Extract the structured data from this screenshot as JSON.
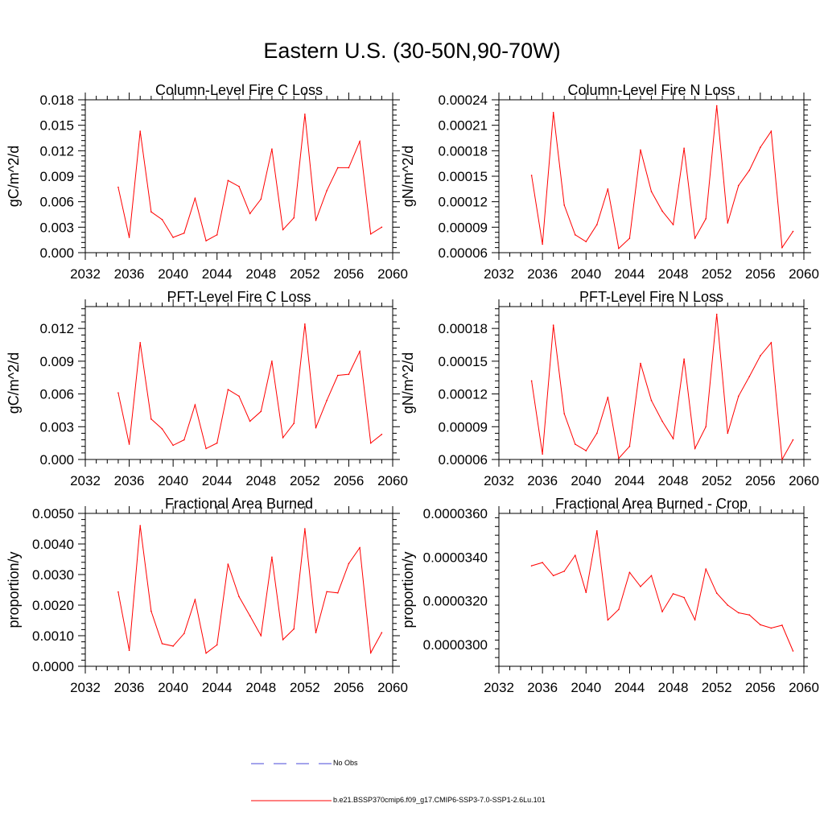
{
  "title": "Eastern U.S. (30-50N,90-70W)",
  "x_ticks": [
    "2032",
    "2036",
    "2040",
    "2044",
    "2048",
    "2052",
    "2056",
    "2060"
  ],
  "legend": {
    "entries": [
      {
        "label": "No Obs",
        "color": "#4a4ad8",
        "style": "dashed"
      },
      {
        "label": "b.e21.BSSP370cmip6.f09_g17.CMIP6-SSP3-7.0-SSP1-2.6Lu.101",
        "color": "#ff0000",
        "style": "solid"
      }
    ]
  },
  "chart_data": [
    {
      "type": "line",
      "title": "Column-Level Fire C Loss",
      "ylabel": "gC/m^2/d",
      "xlim": [
        2032,
        2060
      ],
      "ylim": [
        0,
        0.018
      ],
      "yticks": [
        "0.000",
        "0.003",
        "0.006",
        "0.009",
        "0.012",
        "0.015",
        "0.018"
      ],
      "color": "#ff0000",
      "x": [
        2035,
        2036,
        2037,
        2038,
        2039,
        2040,
        2041,
        2042,
        2043,
        2044,
        2045,
        2046,
        2047,
        2048,
        2049,
        2050,
        2051,
        2052,
        2053,
        2054,
        2055,
        2056,
        2057,
        2058,
        2059
      ],
      "y": [
        0.0077,
        0.0018,
        0.0143,
        0.0048,
        0.0039,
        0.0018,
        0.0023,
        0.0064,
        0.0014,
        0.0021,
        0.0085,
        0.0078,
        0.0046,
        0.0063,
        0.0122,
        0.0027,
        0.0041,
        0.0163,
        0.0038,
        0.0073,
        0.01,
        0.01,
        0.0131,
        0.0022,
        0.003
      ]
    },
    {
      "type": "line",
      "title": "Column-Level Fire N Loss",
      "ylabel": "gN/m^2/d",
      "xlim": [
        2032,
        2060
      ],
      "ylim": [
        6e-05,
        0.00024
      ],
      "yticks": [
        "0.00006",
        "0.00009",
        "0.00012",
        "0.00015",
        "0.00018",
        "0.00021",
        "0.00024"
      ],
      "color": "#ff0000",
      "x": [
        2035,
        2036,
        2037,
        2038,
        2039,
        2040,
        2041,
        2042,
        2043,
        2044,
        2045,
        2046,
        2047,
        2048,
        2049,
        2050,
        2051,
        2052,
        2053,
        2054,
        2055,
        2056,
        2057,
        2058,
        2059
      ],
      "y": [
        0.000151,
        7e-05,
        0.000225,
        0.000116,
        8.1e-05,
        7.3e-05,
        9.3e-05,
        0.000135,
        6.5e-05,
        7.7e-05,
        0.000181,
        0.000132,
        0.000109,
        9.3e-05,
        0.000183,
        7.7e-05,
        0.0001,
        0.000233,
        9.5e-05,
        0.000139,
        0.000157,
        0.000184,
        0.000203,
        6.6e-05,
        8.5e-05
      ]
    },
    {
      "type": "line",
      "title": "PFT-Level Fire C Loss",
      "ylabel": "gC/m^2/d",
      "xlim": [
        2032,
        2060
      ],
      "ylim": [
        0,
        0.014
      ],
      "yticks": [
        "0.000",
        "0.003",
        "0.006",
        "0.009",
        "0.012"
      ],
      "color": "#ff0000",
      "x": [
        2035,
        2036,
        2037,
        2038,
        2039,
        2040,
        2041,
        2042,
        2043,
        2044,
        2045,
        2046,
        2047,
        2048,
        2049,
        2050,
        2051,
        2052,
        2053,
        2054,
        2055,
        2056,
        2057,
        2058,
        2059
      ],
      "y": [
        0.0061,
        0.0014,
        0.0107,
        0.0037,
        0.0028,
        0.0013,
        0.0018,
        0.005,
        0.001,
        0.0015,
        0.0064,
        0.0058,
        0.0035,
        0.0044,
        0.009,
        0.002,
        0.0033,
        0.0124,
        0.0029,
        0.0054,
        0.0077,
        0.0078,
        0.0099,
        0.0015,
        0.0023
      ]
    },
    {
      "type": "line",
      "title": "PFT-Level Fire N Loss",
      "ylabel": "gN/m^2/d",
      "xlim": [
        2032,
        2060
      ],
      "ylim": [
        6e-05,
        0.0002
      ],
      "yticks": [
        "0.00006",
        "0.00009",
        "0.00012",
        "0.00015",
        "0.00018"
      ],
      "color": "#ff0000",
      "x": [
        2035,
        2036,
        2037,
        2038,
        2039,
        2040,
        2041,
        2042,
        2043,
        2044,
        2045,
        2046,
        2047,
        2048,
        2049,
        2050,
        2051,
        2052,
        2053,
        2054,
        2055,
        2056,
        2057,
        2058,
        2059
      ],
      "y": [
        0.000132,
        6.5e-05,
        0.000183,
        0.000102,
        7.4e-05,
        6.8e-05,
        8.4e-05,
        0.000117,
        6.1e-05,
        7.2e-05,
        0.000148,
        0.000114,
        9.5e-05,
        7.9e-05,
        0.000152,
        7e-05,
        9e-05,
        0.000193,
        8.4e-05,
        0.000118,
        0.000136,
        0.000155,
        0.000167,
        6e-05,
        7.8e-05
      ]
    },
    {
      "type": "line",
      "title": "Fractional Area Burned",
      "ylabel": "proportion/y",
      "xlim": [
        2032,
        2060
      ],
      "ylim": [
        0,
        0.005
      ],
      "yticks": [
        "0.0000",
        "0.0010",
        "0.0020",
        "0.0030",
        "0.0040",
        "0.0050"
      ],
      "color": "#ff0000",
      "x": [
        2035,
        2036,
        2037,
        2038,
        2039,
        2040,
        2041,
        2042,
        2043,
        2044,
        2045,
        2046,
        2047,
        2048,
        2049,
        2050,
        2051,
        2052,
        2053,
        2054,
        2055,
        2056,
        2057,
        2058,
        2059
      ],
      "y": [
        0.00243,
        0.00052,
        0.0046,
        0.0018,
        0.00074,
        0.00066,
        0.00107,
        0.00218,
        0.00043,
        0.0007,
        0.00334,
        0.00228,
        0.00165,
        0.001,
        0.00357,
        0.00087,
        0.00122,
        0.0045,
        0.0011,
        0.00244,
        0.0024,
        0.00336,
        0.00388,
        0.00044,
        0.0011
      ]
    },
    {
      "type": "line",
      "title": "Fractional Area Burned - Crop",
      "ylabel": "proportion/y",
      "xlim": [
        2032,
        2060
      ],
      "ylim": [
        2.9e-05,
        3.6e-05
      ],
      "yticks": [
        "0.0000300",
        "0.0000320",
        "0.0000340",
        "0.0000360"
      ],
      "color": "#ff0000",
      "x": [
        2035,
        2036,
        2037,
        2038,
        2039,
        2040,
        2041,
        2042,
        2043,
        2044,
        2045,
        2046,
        2047,
        2048,
        2049,
        2050,
        2051,
        2052,
        2053,
        2054,
        2055,
        2056,
        2057,
        2058,
        2059
      ],
      "y": [
        3.36e-05,
        3.375e-05,
        3.315e-05,
        3.335e-05,
        3.408e-05,
        3.238e-05,
        3.52e-05,
        3.112e-05,
        3.16e-05,
        3.33e-05,
        3.265e-05,
        3.315e-05,
        3.15e-05,
        3.232e-05,
        3.215e-05,
        3.113e-05,
        3.345e-05,
        3.235e-05,
        3.18e-05,
        3.145e-05,
        3.135e-05,
        3.09e-05,
        3.075e-05,
        3.088e-05,
        2.97e-05
      ]
    }
  ]
}
